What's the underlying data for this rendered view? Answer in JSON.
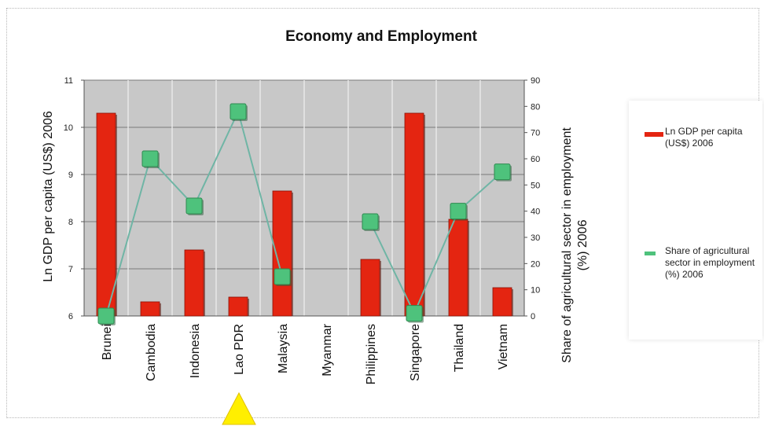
{
  "chart_data": {
    "type": "bar",
    "title": "Economy and Employment",
    "categories": [
      "Brunei",
      "Cambodia",
      "Indonesia",
      "Lao PDR",
      "Malaysia",
      "Myanmar",
      "Philippines",
      "Singapore",
      "Thailand",
      "Vietnam"
    ],
    "ylabel": "Ln GDP per capita (US$) 2006",
    "y2label": "Share of agricultural sector in employment (%) 2006",
    "ylim": [
      6,
      11
    ],
    "y2lim": [
      0,
      90
    ],
    "yticks": [
      "6",
      "7",
      "8",
      "9",
      "10",
      "11"
    ],
    "y2ticks": [
      "0",
      "10",
      "20",
      "30",
      "40",
      "50",
      "60",
      "70",
      "80",
      "90"
    ],
    "series": [
      {
        "name": "Ln GDP per capita (US$) 2006",
        "type": "bar",
        "axis": "left",
        "color": "#e42511",
        "values": [
          10.3,
          6.3,
          7.4,
          6.4,
          8.65,
          null,
          7.2,
          10.3,
          8.05,
          6.6
        ]
      },
      {
        "name": "Share of agricultural sector in employment (%) 2006",
        "type": "line",
        "axis": "right",
        "color": "#4ec27c",
        "values": [
          0,
          60,
          42,
          78,
          15,
          null,
          36,
          1,
          40,
          55
        ]
      }
    ],
    "grid": true,
    "plot_background": "#c8c8c8",
    "legend_position": "right"
  }
}
